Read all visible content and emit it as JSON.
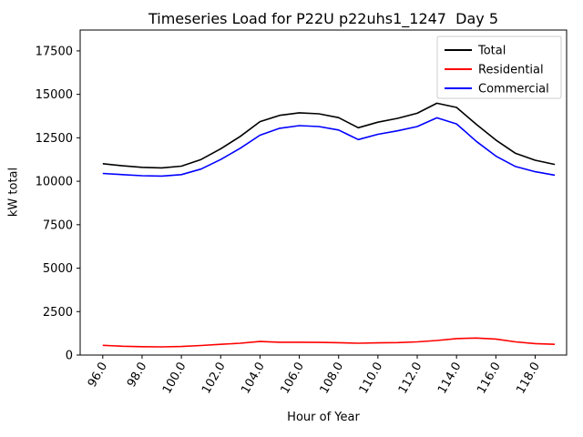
{
  "chart_data": {
    "type": "line",
    "title": "Timeseries Load for P22U p22uhs1_1247  Day 5",
    "xlabel": "Hour of Year",
    "ylabel": "kW total",
    "grid": false,
    "legend_position": "upper right",
    "xlim": [
      94.85,
      119.6
    ],
    "ylim": [
      0,
      18700
    ],
    "xticks": [
      96,
      98,
      100,
      102,
      104,
      106,
      108,
      110,
      112,
      114,
      116,
      118
    ],
    "yticks": [
      0,
      2500,
      5000,
      7500,
      10000,
      12500,
      15000,
      17500
    ],
    "x": [
      96,
      97,
      98,
      99,
      100,
      101,
      102,
      103,
      104,
      105,
      106,
      107,
      108,
      109,
      110,
      111,
      112,
      113,
      114,
      115,
      116,
      117,
      118,
      119
    ],
    "series": [
      {
        "name": "Total",
        "color": "#000000",
        "values": [
          11010,
          10890,
          10800,
          10770,
          10870,
          11250,
          11870,
          12580,
          13430,
          13790,
          13940,
          13880,
          13660,
          13080,
          13400,
          13620,
          13910,
          14490,
          14250,
          13280,
          12370,
          11610,
          11210,
          10970
        ]
      },
      {
        "name": "Residential",
        "color": "#ff0000",
        "values": [
          560,
          510,
          480,
          470,
          490,
          550,
          620,
          680,
          780,
          740,
          740,
          730,
          710,
          680,
          700,
          720,
          760,
          840,
          950,
          980,
          920,
          760,
          660,
          620
        ]
      },
      {
        "name": "Commercial",
        "color": "#0000ff",
        "values": [
          10450,
          10380,
          10320,
          10300,
          10380,
          10700,
          11250,
          11900,
          12650,
          13050,
          13200,
          13150,
          12950,
          12400,
          12700,
          12900,
          13150,
          13650,
          13300,
          12300,
          11450,
          10850,
          10550,
          10350
        ]
      }
    ]
  }
}
